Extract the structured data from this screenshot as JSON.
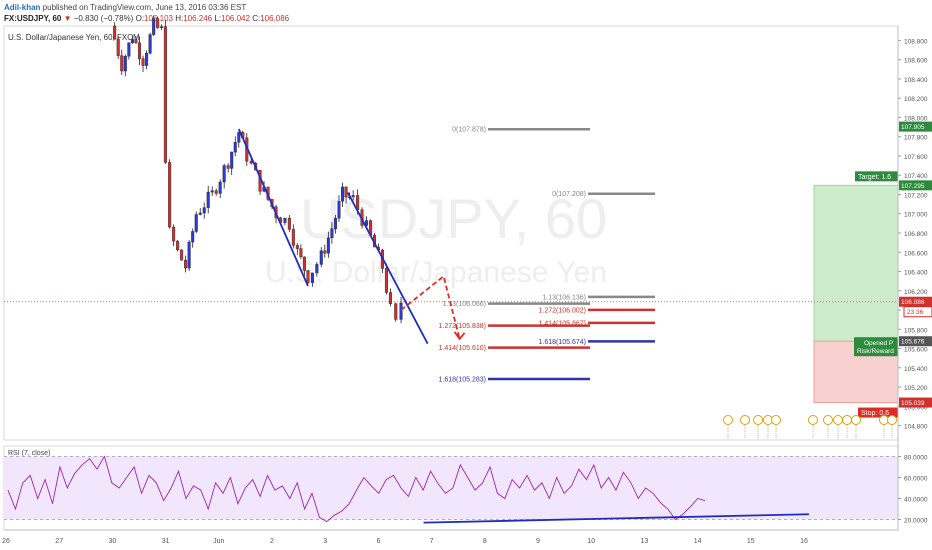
{
  "header": {
    "author": "Adil-khan",
    "published": " published on TradingView.com, June 13, 2016 03:36 EST",
    "symbol": "FX:USDJPY, 60",
    "change_arrow": "▼",
    "change": "−0.830 (−0.78%)",
    "o_label": "O:",
    "o_value": "106.103",
    "h_label": "H:",
    "h_value": "106.246",
    "l_label": "L:",
    "l_value": "106.042",
    "c_label": "C:",
    "c_value": "106.086",
    "last": "106.086"
  },
  "chart_data": [
    {
      "type": "candlestick",
      "title": "U.S. Dollar/Japanese Yen, 60, FXCM",
      "watermark_symbol": "USDJPY, 60",
      "watermark_name": "U.S. Dollar/Japanese Yen",
      "ylim": [
        104.65,
        108.95
      ],
      "y_ticks": [
        "108.800",
        "108.600",
        "108.400",
        "108.200",
        "108.000",
        "107.800",
        "107.600",
        "107.400",
        "107.200",
        "107.000",
        "106.800",
        "106.600",
        "106.400",
        "106.200",
        "106.000",
        "105.800",
        "105.600",
        "105.400",
        "105.200",
        "105.000",
        "104.800"
      ],
      "x_ticks": [
        "26",
        "27",
        "30",
        "31",
        "Jun",
        "2",
        "3",
        "6",
        "7",
        "8",
        "9",
        "10",
        "13",
        "14",
        "15",
        "16"
      ],
      "price_path": [
        {
          "day": 1.6,
          "price": 108.95
        },
        {
          "day": 1.8,
          "price": 108.55
        },
        {
          "day": 2.0,
          "price": 108.85
        },
        {
          "day": 2.2,
          "price": 108.6
        },
        {
          "day": 2.4,
          "price": 108.95
        },
        {
          "day": 2.55,
          "price": 108.9
        },
        {
          "day": 2.62,
          "price": 107.6
        },
        {
          "day": 2.7,
          "price": 106.8
        },
        {
          "day": 2.85,
          "price": 106.6
        },
        {
          "day": 3.0,
          "price": 106.45
        },
        {
          "day": 3.2,
          "price": 107.0
        },
        {
          "day": 3.5,
          "price": 107.2
        },
        {
          "day": 3.8,
          "price": 107.55
        },
        {
          "day": 4.0,
          "price": 107.85
        },
        {
          "day": 4.15,
          "price": 107.6
        },
        {
          "day": 4.4,
          "price": 107.3
        },
        {
          "day": 4.7,
          "price": 107.0
        },
        {
          "day": 4.95,
          "price": 106.9
        },
        {
          "day": 5.1,
          "price": 106.6
        },
        {
          "day": 5.3,
          "price": 106.35
        },
        {
          "day": 5.55,
          "price": 106.55
        },
        {
          "day": 5.75,
          "price": 106.85
        },
        {
          "day": 5.95,
          "price": 107.2
        },
        {
          "day": 6.15,
          "price": 107.15
        },
        {
          "day": 6.4,
          "price": 106.85
        },
        {
          "day": 6.7,
          "price": 106.45
        },
        {
          "day": 6.85,
          "price": 106.0
        },
        {
          "day": 6.95,
          "price": 105.85
        },
        {
          "day": 7.05,
          "price": 106.086
        }
      ],
      "current_price": 106.086,
      "countdown": "23:36",
      "trendlines": [
        {
          "from": {
            "day": 4.0,
            "price": 107.88
          },
          "to": {
            "day": 5.3,
            "price": 106.25
          }
        },
        {
          "from": {
            "day": 6.05,
            "price": 107.22
          },
          "to": {
            "day": 7.55,
            "price": 105.65
          }
        }
      ],
      "fib_levels": [
        {
          "label": "0(107.878)",
          "price": 107.878,
          "color": "#888888"
        },
        {
          "label": "0(107.208)",
          "price": 107.208,
          "color": "#888888"
        },
        {
          "label": "1.13(106.136)",
          "price": 106.136,
          "color": "#888888"
        },
        {
          "label": "1.13(106.066)",
          "price": 106.066,
          "color": "#888888"
        },
        {
          "label": "1.272(106.002)",
          "price": 106.002,
          "color": "#d0312d"
        },
        {
          "label": "1.414(105.867)",
          "price": 105.867,
          "color": "#d0312d"
        },
        {
          "label": "1.272(105.838)",
          "price": 105.838,
          "color": "#d0312d"
        },
        {
          "label": "1.618(105.674)",
          "price": 105.674,
          "color": "#3333aa"
        },
        {
          "label": "1.414(105.610)",
          "price": 105.61,
          "color": "#d0312d"
        },
        {
          "label": "1.618(105.283)",
          "price": 105.283,
          "color": "#3333aa"
        }
      ],
      "projection": [
        {
          "day": 7.05,
          "price": 106.0
        },
        {
          "day": 7.85,
          "price": 106.35
        },
        {
          "day": 8.15,
          "price": 105.7
        }
      ],
      "position": {
        "target_label": "Target: 1.6",
        "target_price": 107.295,
        "entry_label_1": "Opened P",
        "entry_label_2": "Risk/Reward",
        "entry_price": 105.676,
        "stop_label": "Stop: 0.6",
        "stop_price": 105.039
      },
      "axis_tags": [
        {
          "text": "107.905",
          "price": 107.905,
          "color": "#2e8b3d"
        },
        {
          "text": "107.295",
          "price": 107.295,
          "color": "#2e8b3d"
        },
        {
          "text": "106.086",
          "price": 106.086,
          "color": "#d0312d"
        },
        {
          "text": "105.676",
          "price": 105.676,
          "color": "#555555"
        },
        {
          "text": "105.039",
          "price": 105.039,
          "color": "#d0312d"
        }
      ]
    },
    {
      "type": "line",
      "title": "RSI (7, close)",
      "ylim": [
        10,
        90
      ],
      "y_ticks": [
        "80.0000",
        "60.0000",
        "40.0000",
        "20.0000"
      ],
      "band": [
        20,
        80
      ],
      "values": [
        48,
        30,
        55,
        62,
        40,
        58,
        35,
        70,
        50,
        64,
        72,
        78,
        68,
        80,
        55,
        50,
        60,
        70,
        45,
        62,
        55,
        38,
        50,
        66,
        40,
        52,
        48,
        30,
        55,
        45,
        60,
        35,
        50,
        58,
        42,
        62,
        48,
        52,
        40,
        55,
        30,
        45,
        22,
        18,
        24,
        28,
        35,
        48,
        60,
        52,
        45,
        58,
        62,
        50,
        42,
        60,
        48,
        66,
        54,
        45,
        50,
        72,
        60,
        48,
        55,
        70,
        45,
        40,
        58,
        50,
        62,
        48,
        55,
        40,
        60,
        45,
        52,
        68,
        58,
        72,
        50,
        60,
        48,
        65,
        55,
        40,
        50,
        45,
        36,
        30,
        20,
        25,
        32,
        40,
        38
      ],
      "trendline": {
        "from": {
          "day": 3.15,
          "rsi": 17
        },
        "to": {
          "day": 7.95,
          "rsi": 25
        }
      }
    }
  ]
}
